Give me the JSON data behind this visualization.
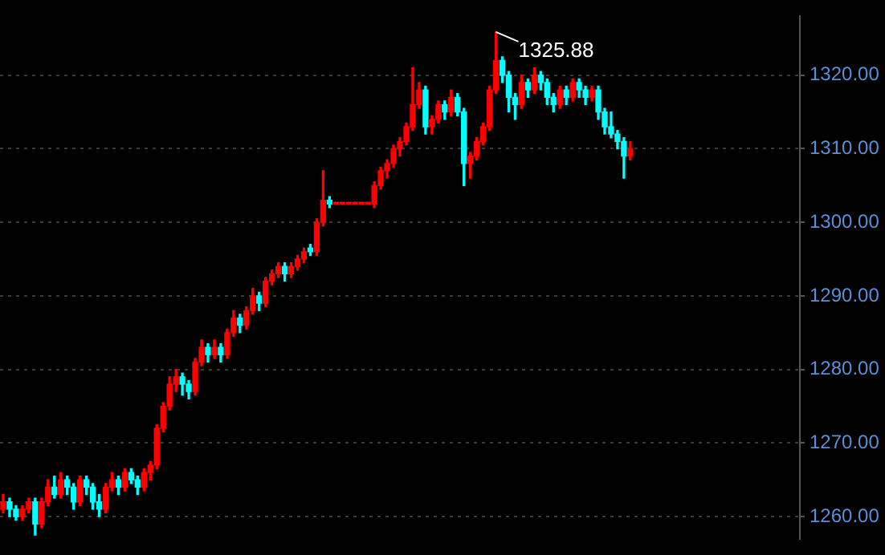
{
  "chart_data": {
    "type": "candlestick",
    "categories": [
      null,
      null,
      null,
      null,
      null,
      null,
      null,
      null,
      null,
      null,
      null,
      null,
      null,
      null,
      null,
      null,
      null,
      null,
      null,
      null,
      null,
      null,
      null,
      null,
      null,
      null,
      null,
      null,
      null,
      null,
      null,
      null,
      null,
      null,
      null,
      null,
      null,
      null,
      null,
      null,
      null,
      null,
      null,
      null,
      null,
      null,
      null,
      null,
      null,
      null,
      null,
      null,
      null,
      null,
      null,
      null,
      null,
      null,
      null,
      null,
      null,
      null,
      null,
      null,
      null,
      null,
      null,
      null,
      null,
      null,
      null,
      null,
      null,
      null,
      null,
      null,
      null,
      null,
      null,
      null,
      null,
      null,
      null,
      null,
      null,
      null,
      null,
      null,
      null,
      null,
      null,
      null,
      null,
      null,
      null,
      null,
      null,
      null,
      null,
      null,
      null,
      null,
      null,
      null,
      null,
      null,
      null,
      null,
      null,
      null,
      null,
      null,
      null,
      null,
      null,
      null,
      null,
      null,
      null,
      null,
      null,
      null,
      null,
      null,
      null
    ],
    "ohlc": [
      [
        1261,
        1263,
        1260.5,
        1262
      ],
      [
        1262,
        1262.5,
        1260,
        1261
      ],
      [
        1261,
        1261.5,
        1259.5,
        1260
      ],
      [
        1260,
        1261.5,
        1259.5,
        1261
      ],
      [
        1261,
        1262.5,
        1260.5,
        1262
      ],
      [
        1262,
        1262.5,
        1257.5,
        1259
      ],
      [
        1259,
        1262.5,
        1258.5,
        1262
      ],
      [
        1262,
        1265,
        1261.5,
        1264
      ],
      [
        1264,
        1265.5,
        1262.5,
        1263
      ],
      [
        1263,
        1266,
        1262.5,
        1265
      ],
      [
        1265,
        1265.5,
        1263,
        1264
      ],
      [
        1264,
        1264.5,
        1261,
        1262
      ],
      [
        1262,
        1265.5,
        1261.5,
        1265
      ],
      [
        1265,
        1265.5,
        1263,
        1264
      ],
      [
        1264,
        1264.5,
        1261,
        1262
      ],
      [
        1262,
        1263,
        1260,
        1261
      ],
      [
        1261,
        1264.5,
        1260.5,
        1264
      ],
      [
        1264,
        1266,
        1263.5,
        1265
      ],
      [
        1265,
        1265.5,
        1263,
        1264
      ],
      [
        1264,
        1266.5,
        1263.5,
        1266
      ],
      [
        1266,
        1266.5,
        1264.5,
        1265
      ],
      [
        1265,
        1265.5,
        1263,
        1264
      ],
      [
        1264,
        1266.5,
        1263.5,
        1266
      ],
      [
        1266,
        1267.5,
        1265,
        1267
      ],
      [
        1267,
        1272.5,
        1266.5,
        1272
      ],
      [
        1272,
        1275.5,
        1271.5,
        1275
      ],
      [
        1275,
        1279,
        1274.5,
        1278
      ],
      [
        1278,
        1280,
        1277,
        1279
      ],
      [
        1279,
        1279.5,
        1276.5,
        1278
      ],
      [
        1278,
        1278.5,
        1276,
        1277
      ],
      [
        1277,
        1281.5,
        1276.5,
        1281
      ],
      [
        1281,
        1284,
        1280.5,
        1283
      ],
      [
        1283,
        1283.5,
        1281,
        1282
      ],
      [
        1282,
        1284,
        1281.5,
        1283
      ],
      [
        1283,
        1283.5,
        1281,
        1282
      ],
      [
        1282,
        1285.5,
        1281.5,
        1285
      ],
      [
        1285,
        1288,
        1284.5,
        1287
      ],
      [
        1287,
        1287.5,
        1285,
        1286
      ],
      [
        1286,
        1288.5,
        1285.5,
        1288
      ],
      [
        1288,
        1291,
        1287.5,
        1290
      ],
      [
        1290,
        1290.5,
        1288,
        1289
      ],
      [
        1289,
        1292.5,
        1288.5,
        1292
      ],
      [
        1292,
        1293.5,
        1291.5,
        1293
      ],
      [
        1293,
        1294.5,
        1292.5,
        1294
      ],
      [
        1294,
        1294.5,
        1292,
        1293
      ],
      [
        1293,
        1294.5,
        1292.5,
        1294
      ],
      [
        1294,
        1295.5,
        1293.5,
        1295
      ],
      [
        1295,
        1296.5,
        1294.5,
        1296
      ],
      [
        1296.5,
        1297,
        1295.5,
        1296
      ],
      [
        1296,
        1300.5,
        1295.5,
        1300
      ],
      [
        1300,
        1307,
        1299.5,
        1303
      ],
      [
        1303,
        1303.5,
        1302,
        1302.5
      ],
      [
        1302.5,
        1302.5,
        1302.5,
        1302.5
      ],
      [
        1302.5,
        1302.5,
        1302.5,
        1302.5
      ],
      [
        1302.5,
        1302.5,
        1302.5,
        1302.5
      ],
      [
        1302.5,
        1302.5,
        1302.5,
        1302.5
      ],
      [
        1302.5,
        1302.5,
        1302.5,
        1302.5
      ],
      [
        1302.5,
        1302.5,
        1302.5,
        1302.5
      ],
      [
        1302.5,
        1305.5,
        1302,
        1305
      ],
      [
        1305,
        1307.5,
        1304.5,
        1307
      ],
      [
        1307,
        1308.5,
        1306,
        1308
      ],
      [
        1308,
        1310.5,
        1307.5,
        1310
      ],
      [
        1310,
        1311.5,
        1309,
        1311
      ],
      [
        1311,
        1313.5,
        1310.5,
        1313
      ],
      [
        1313,
        1321,
        1312.5,
        1316
      ],
      [
        1316,
        1319,
        1315.5,
        1318
      ],
      [
        1318,
        1318.5,
        1312,
        1313
      ],
      [
        1313,
        1314.5,
        1312,
        1314
      ],
      [
        1314,
        1316.5,
        1313.5,
        1316
      ],
      [
        1316,
        1316.5,
        1314,
        1315
      ],
      [
        1315,
        1318,
        1314.5,
        1317
      ],
      [
        1317,
        1317.5,
        1314.5,
        1315
      ],
      [
        1315,
        1315.5,
        1305,
        1308
      ],
      [
        1308,
        1309.5,
        1306,
        1309
      ],
      [
        1309,
        1311.5,
        1308.5,
        1311
      ],
      [
        1311,
        1313.5,
        1310.5,
        1313
      ],
      [
        1313,
        1318.5,
        1312.5,
        1318
      ],
      [
        1318,
        1325.88,
        1317.5,
        1322
      ],
      [
        1322,
        1322.5,
        1319,
        1320
      ],
      [
        1320,
        1320.5,
        1315,
        1317
      ],
      [
        1317,
        1317.5,
        1314,
        1316
      ],
      [
        1316,
        1320,
        1315.5,
        1319
      ],
      [
        1319,
        1319.5,
        1317,
        1318
      ],
      [
        1318,
        1321,
        1317.5,
        1320
      ],
      [
        1320,
        1320.5,
        1318,
        1319
      ],
      [
        1319,
        1319.5,
        1316,
        1317
      ],
      [
        1317,
        1317.5,
        1315,
        1316
      ],
      [
        1316,
        1318.5,
        1315.5,
        1318
      ],
      [
        1318,
        1318.5,
        1316,
        1317
      ],
      [
        1317,
        1319.5,
        1316.5,
        1319
      ],
      [
        1319,
        1319.5,
        1317,
        1318
      ],
      [
        1318,
        1318.5,
        1316,
        1317
      ],
      [
        1317,
        1318.5,
        1316.5,
        1318
      ],
      [
        1318,
        1318.5,
        1314,
        1315
      ],
      [
        1315,
        1315.5,
        1312,
        1313
      ],
      [
        1313,
        1315,
        1311.5,
        1312
      ],
      [
        1312,
        1312.5,
        1310,
        1311
      ],
      [
        1311,
        1311.5,
        1306,
        1309
      ],
      [
        1309,
        1311,
        1308.5,
        1310
      ],
      null,
      null,
      null,
      null,
      null,
      null,
      null,
      null,
      null,
      null,
      null,
      null,
      null,
      null,
      null,
      null,
      null,
      null,
      null,
      null,
      null,
      null,
      null,
      null,
      null,
      null
    ],
    "colors": [
      "#ff0000",
      "#00ffff",
      "#00ffff",
      "#ff0000",
      "#ff0000",
      "#00ffff",
      "#ff0000",
      "#ff0000",
      "#00ffff",
      "#ff0000",
      "#00ffff",
      "#00ffff",
      "#ff0000",
      "#00ffff",
      "#00ffff",
      "#00ffff",
      "#ff0000",
      "#ff0000",
      "#00ffff",
      "#ff0000",
      "#00ffff",
      "#00ffff",
      "#ff0000",
      "#ff0000",
      "#ff0000",
      "#ff0000",
      "#ff0000",
      "#ff0000",
      "#00ffff",
      "#00ffff",
      "#ff0000",
      "#ff0000",
      "#00ffff",
      "#ff0000",
      "#00ffff",
      "#ff0000",
      "#ff0000",
      "#00ffff",
      "#ff0000",
      "#ff0000",
      "#00ffff",
      "#ff0000",
      "#ff0000",
      "#ff0000",
      "#00ffff",
      "#ff0000",
      "#ff0000",
      "#ff0000",
      "#00ffff",
      "#ff0000",
      "#ff0000",
      "#00ffff",
      "#ff0000",
      "#ff0000",
      "#ff0000",
      "#ff0000",
      "#ff0000",
      "#ff0000",
      "#ff0000",
      "#ff0000",
      "#ff0000",
      "#ff0000",
      "#ff0000",
      "#ff0000",
      "#ff0000",
      "#ff0000",
      "#00ffff",
      "#ff0000",
      "#ff0000",
      "#00ffff",
      "#ff0000",
      "#00ffff",
      "#00ffff",
      "#ff0000",
      "#ff0000",
      "#ff0000",
      "#ff0000",
      "#ff0000",
      "#00ffff",
      "#00ffff",
      "#00ffff",
      "#ff0000",
      "#00ffff",
      "#ff0000",
      "#00ffff",
      "#00ffff",
      "#00ffff",
      "#ff0000",
      "#00ffff",
      "#ff0000",
      "#00ffff",
      "#00ffff",
      "#ff0000",
      "#00ffff",
      "#00ffff",
      "#00ffff",
      "#00ffff",
      "#00ffff",
      "#ff0000",
      null,
      null,
      null,
      null,
      null,
      null,
      null,
      null,
      null,
      null,
      null,
      null,
      null,
      null,
      null,
      null,
      null,
      null,
      null,
      null,
      null,
      null,
      null,
      null,
      null,
      null
    ],
    "ylim": [
      1257,
      1328
    ],
    "yticks": [
      {
        "value": 1260,
        "label": "1260.00"
      },
      {
        "value": 1270,
        "label": "1270.00"
      },
      {
        "value": 1280,
        "label": "1280.00"
      },
      {
        "value": 1290,
        "label": "1290.00"
      },
      {
        "value": 1300,
        "label": "1300.00"
      },
      {
        "value": 1310,
        "label": "1310.00"
      },
      {
        "value": 1320,
        "label": "1320.00"
      }
    ],
    "grid": "y",
    "annotations": [
      "1325.88"
    ]
  }
}
